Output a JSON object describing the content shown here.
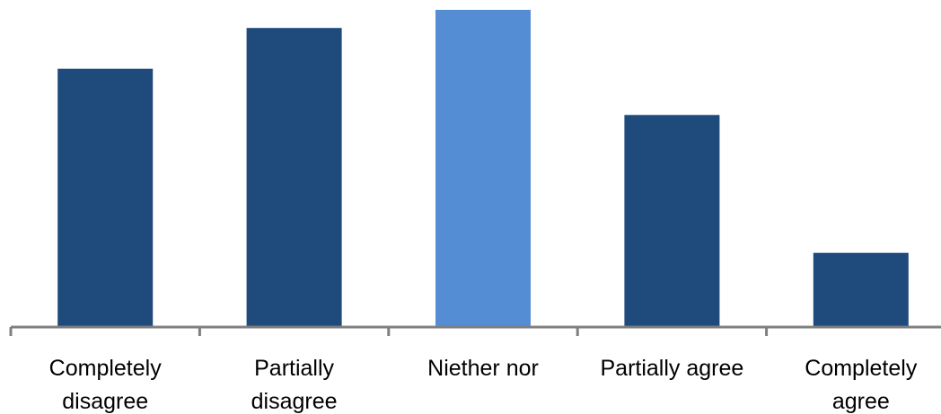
{
  "chart_data": {
    "type": "bar",
    "categories": [
      [
        "Completely",
        "disagree"
      ],
      [
        "Partially",
        "disagree"
      ],
      [
        "Niether nor"
      ],
      [
        "Partially agree"
      ],
      [
        "Completely",
        "agree"
      ]
    ],
    "values": [
      28.5,
      33.0,
      35.0,
      23.4,
      8.2
    ],
    "title": "",
    "xlabel": "",
    "ylabel": "",
    "ylim": [
      0,
      35.0
    ],
    "grid": false,
    "legend": "none",
    "colors": {
      "default_bar": "#1f4a7c",
      "highlight_bar": "#548dd4",
      "axis": "#7f7f7f"
    },
    "highlight_index": 2
  }
}
